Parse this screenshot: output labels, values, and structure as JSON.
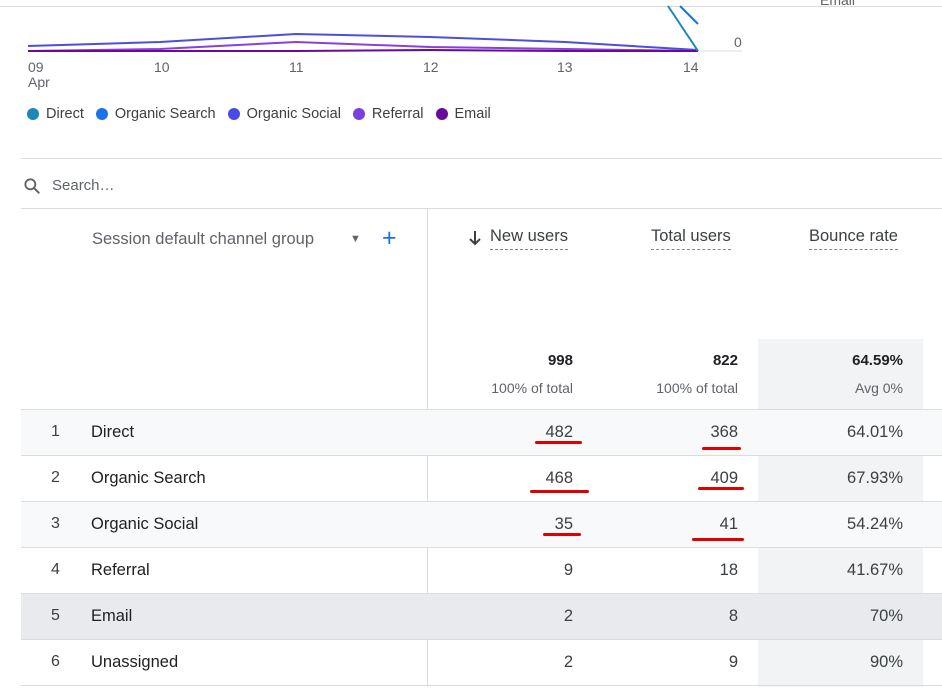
{
  "chart": {
    "x_ticks": [
      "09",
      "10",
      "11",
      "12",
      "13",
      "14"
    ],
    "x_sub_tick": "Apr",
    "y_tick_right": "0",
    "cut_off_label": "Email",
    "series_colors": {
      "direct": "#12939a",
      "organic_search": "#1a73e8",
      "organic_social": "#4d4de0",
      "referral": "#8a3ee0",
      "email": "#6a0a9a"
    }
  },
  "legend": [
    {
      "label": "Direct",
      "color": "#1e88b4"
    },
    {
      "label": "Organic Search",
      "color": "#1a73e8"
    },
    {
      "label": "Organic Social",
      "color": "#4a4ae6"
    },
    {
      "label": "Referral",
      "color": "#7b3fe0"
    },
    {
      "label": "Email",
      "color": "#6a0a9a"
    }
  ],
  "search": {
    "placeholder": "Search…"
  },
  "table": {
    "dimension_header": "Session default channel group",
    "columns": {
      "new_users": "New users",
      "total_users": "Total users",
      "bounce_rate": "Bounce rate"
    },
    "totals": {
      "new_users": "998",
      "new_users_sub": "100% of total",
      "total_users": "822",
      "total_users_sub": "100% of total",
      "bounce_rate": "64.59%",
      "bounce_rate_sub": "Avg 0%"
    },
    "rows": [
      {
        "rank": "1",
        "channel": "Direct",
        "new_users": "482",
        "total_users": "368",
        "bounce_rate": "64.01%"
      },
      {
        "rank": "2",
        "channel": "Organic Search",
        "new_users": "468",
        "total_users": "409",
        "bounce_rate": "67.93%"
      },
      {
        "rank": "3",
        "channel": "Organic Social",
        "new_users": "35",
        "total_users": "41",
        "bounce_rate": "54.24%"
      },
      {
        "rank": "4",
        "channel": "Referral",
        "new_users": "9",
        "total_users": "18",
        "bounce_rate": "41.67%"
      },
      {
        "rank": "5",
        "channel": "Email",
        "new_users": "2",
        "total_users": "8",
        "bounce_rate": "70%"
      },
      {
        "rank": "6",
        "channel": "Unassigned",
        "new_users": "2",
        "total_users": "9",
        "bounce_rate": "90%"
      }
    ]
  }
}
